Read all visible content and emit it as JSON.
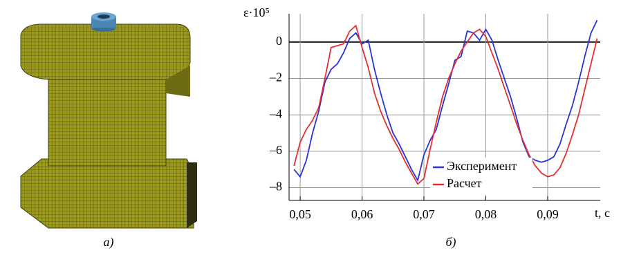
{
  "figure": {
    "captions": [
      "а)",
      "б)"
    ]
  },
  "chart_data": {
    "type": "line",
    "y_label": "ε·10⁵",
    "x_label": "t, с",
    "x": [
      0.049,
      0.05,
      0.051,
      0.052,
      0.053,
      0.054,
      0.055,
      0.056,
      0.057,
      0.058,
      0.059,
      0.06,
      0.061,
      0.062,
      0.063,
      0.064,
      0.065,
      0.066,
      0.067,
      0.068,
      0.069,
      0.07,
      0.071,
      0.072,
      0.073,
      0.074,
      0.075,
      0.076,
      0.077,
      0.078,
      0.079,
      0.08,
      0.081,
      0.082,
      0.083,
      0.084,
      0.085,
      0.086,
      0.087,
      0.088,
      0.089,
      0.09,
      0.091,
      0.092,
      0.093,
      0.094,
      0.095,
      0.096,
      0.097,
      0.098
    ],
    "series": [
      {
        "name": "Эксперимент",
        "color": "#2a32d6",
        "values": [
          -7.0,
          -7.4,
          -6.5,
          -5.0,
          -3.8,
          -2.2,
          -1.5,
          -1.2,
          -0.6,
          0.2,
          0.5,
          -0.1,
          0.1,
          -1.5,
          -2.8,
          -4.0,
          -5.0,
          -5.6,
          -6.3,
          -7.0,
          -7.6,
          -6.2,
          -5.4,
          -4.8,
          -3.5,
          -2.3,
          -1.0,
          -0.8,
          0.6,
          0.5,
          0.1,
          0.7,
          0.1,
          -1.0,
          -2.0,
          -3.0,
          -4.2,
          -5.5,
          -6.3,
          -6.5,
          -6.6,
          -6.5,
          -6.3,
          -5.6,
          -4.5,
          -3.5,
          -2.2,
          -0.8,
          0.5,
          1.2
        ]
      },
      {
        "name": "Расчет",
        "color": "#e23030",
        "values": [
          -6.8,
          -5.5,
          -4.8,
          -4.3,
          -3.6,
          -2.0,
          -0.3,
          -0.2,
          -0.1,
          0.6,
          0.9,
          -0.3,
          -1.4,
          -2.8,
          -3.8,
          -4.6,
          -5.3,
          -5.9,
          -6.6,
          -7.2,
          -7.8,
          -7.5,
          -5.9,
          -4.4,
          -3.0,
          -2.0,
          -1.2,
          -0.5,
          0.0,
          0.5,
          0.7,
          0.3,
          -0.6,
          -1.5,
          -2.5,
          -3.5,
          -4.5,
          -5.4,
          -6.2,
          -6.8,
          -7.2,
          -7.4,
          -7.3,
          -6.9,
          -6.1,
          -5.1,
          -4.0,
          -2.6,
          -1.2,
          0.2
        ]
      }
    ],
    "xlim": [
      0.0482,
      0.0985
    ],
    "ylim": [
      -8.7,
      1.55
    ],
    "xticks": [
      {
        "value": 0.05,
        "label": "0,05"
      },
      {
        "value": 0.06,
        "label": "0,06"
      },
      {
        "value": 0.07,
        "label": "0,07"
      },
      {
        "value": 0.08,
        "label": "0,08"
      },
      {
        "value": 0.09,
        "label": "0,09"
      }
    ],
    "yticks": [
      0,
      {
        "value": -2,
        "label": "–2"
      },
      {
        "value": -4,
        "label": "–4"
      },
      {
        "value": -6,
        "label": "–6"
      },
      {
        "value": -8,
        "label": "–8"
      }
    ],
    "grid": true,
    "legend": "lower-right"
  }
}
